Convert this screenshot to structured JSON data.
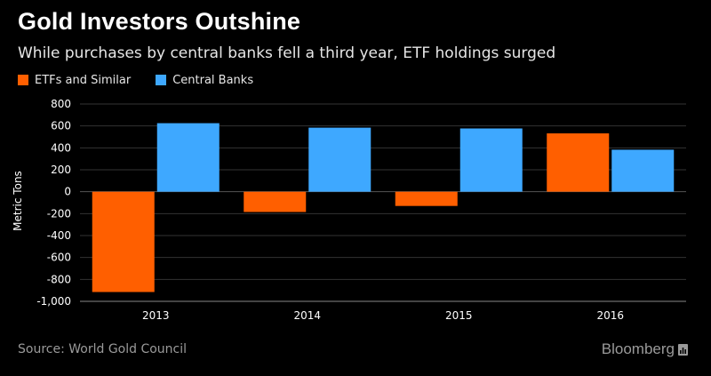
{
  "header": {
    "title": "Gold Investors Outshine",
    "subtitle": "While purchases by central banks fell a third year, ETF holdings surged"
  },
  "footer": {
    "source": "Source: World Gold Council",
    "brand": "Bloomberg",
    "brand_icon": "chart-bars-icon"
  },
  "colors": {
    "background": "#000000",
    "etf": "#ff5f00",
    "central_banks": "#3ea8ff",
    "grid": "#333333"
  },
  "chart_data": {
    "type": "bar",
    "categories": [
      "2013",
      "2014",
      "2015",
      "2016"
    ],
    "series": [
      {
        "name": "ETFs and Similar",
        "values": [
          -915,
          -185,
          -130,
          532
        ],
        "color": "#ff5f00"
      },
      {
        "name": "Central Banks",
        "values": [
          625,
          584,
          577,
          383
        ],
        "color": "#3ea8ff"
      }
    ],
    "ylabel": "Metric Tons",
    "ylim": [
      -1000,
      800
    ],
    "yticks": [
      800,
      600,
      400,
      200,
      0,
      -200,
      -400,
      -600,
      -800,
      -1000
    ],
    "ytick_labels": [
      "800",
      "600",
      "400",
      "200",
      "0",
      "-200",
      "-400",
      "-600",
      "-800",
      "-1,000"
    ],
    "grid": true,
    "legend_position": "top-left"
  }
}
